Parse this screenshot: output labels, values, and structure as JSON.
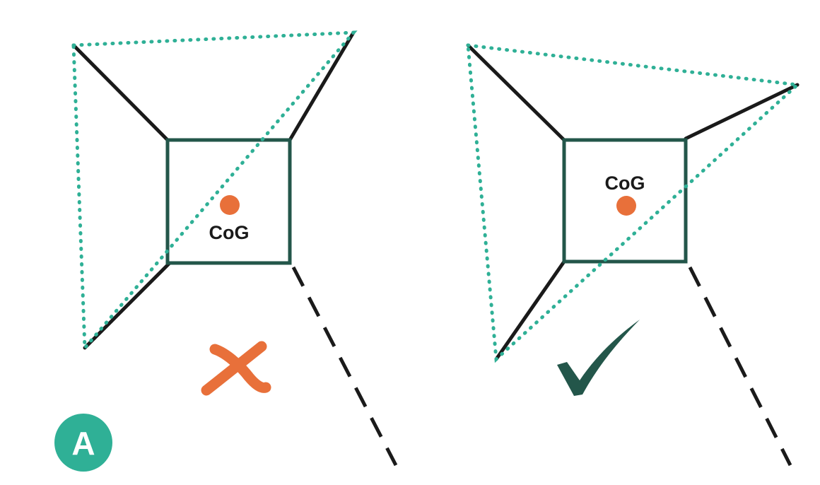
{
  "panels": [
    {
      "cog_label": "CoG",
      "verdict": "incorrect"
    },
    {
      "cog_label": "CoG",
      "verdict": "correct"
    }
  ],
  "badge": {
    "letter": "A"
  },
  "colors": {
    "frame": "#23564a",
    "arm": "#1a1a1a",
    "support_polygon": "#2fb096",
    "cog_dot": "#e8703a",
    "cross": "#e8703a",
    "check": "#23564a",
    "badge": "#2fb096"
  },
  "icons": {
    "incorrect": "cross-mark-icon",
    "correct": "check-mark-icon"
  }
}
